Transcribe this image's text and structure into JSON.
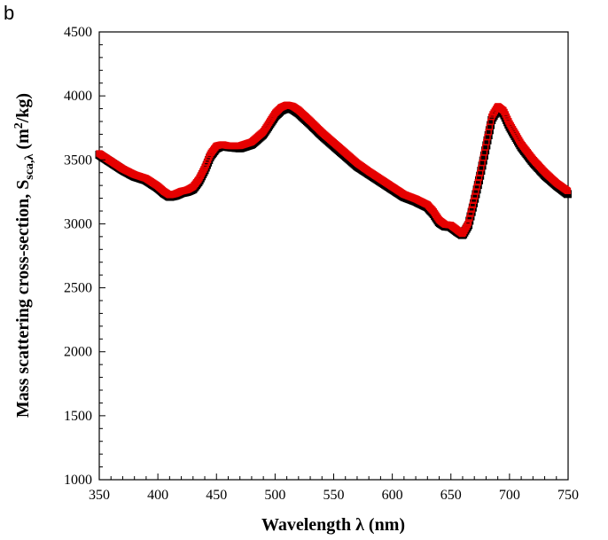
{
  "panel_label": "b",
  "colors": {
    "series_a": "#000000",
    "series_b": "#e60000",
    "axis": "#000000",
    "background": "#ffffff"
  },
  "chart_data": {
    "type": "scatter",
    "title": "",
    "xlabel": "Wavelength λ (nm)",
    "ylabel": {
      "prefix": "Mass scattering cross-section, S",
      "subscript": "sca,λ",
      "unit_open": " (m",
      "unit_sup": "2",
      "unit_close": "/kg)"
    },
    "xlim": [
      350,
      750
    ],
    "ylim": [
      1000,
      4500
    ],
    "xticks": [
      350,
      400,
      450,
      500,
      550,
      600,
      650,
      700,
      750
    ],
    "yticks": [
      1000,
      1500,
      2000,
      2500,
      3000,
      3500,
      4000,
      4500
    ],
    "grid": false,
    "legend": "none",
    "series": [
      {
        "color": "#000000",
        "marker": "filled-dense",
        "x": [
          350,
          360,
          370,
          380,
          390,
          400,
          405,
          410,
          415,
          420,
          425,
          430,
          435,
          440,
          445,
          450,
          455,
          460,
          470,
          480,
          490,
          500,
          505,
          510,
          515,
          520,
          530,
          540,
          550,
          560,
          570,
          580,
          590,
          600,
          610,
          620,
          630,
          635,
          640,
          645,
          650,
          655,
          660,
          665,
          670,
          675,
          680,
          685,
          690,
          695,
          700,
          710,
          720,
          730,
          740,
          750
        ],
        "y": [
          3540,
          3480,
          3420,
          3370,
          3340,
          3280,
          3240,
          3210,
          3220,
          3240,
          3250,
          3270,
          3330,
          3420,
          3530,
          3590,
          3610,
          3600,
          3590,
          3620,
          3700,
          3840,
          3885,
          3905,
          3895,
          3865,
          3780,
          3690,
          3610,
          3530,
          3450,
          3390,
          3330,
          3270,
          3210,
          3175,
          3130,
          3080,
          3010,
          2980,
          2975,
          2940,
          2910,
          2990,
          3180,
          3380,
          3600,
          3820,
          3900,
          3860,
          3760,
          3600,
          3480,
          3380,
          3300,
          3230
        ]
      },
      {
        "color": "#e60000",
        "marker": "square",
        "x": [
          350,
          360,
          370,
          380,
          390,
          400,
          405,
          410,
          415,
          420,
          425,
          430,
          435,
          440,
          445,
          450,
          455,
          460,
          470,
          480,
          490,
          500,
          505,
          510,
          515,
          520,
          530,
          540,
          550,
          560,
          570,
          580,
          590,
          600,
          610,
          620,
          630,
          635,
          640,
          645,
          650,
          655,
          660,
          665,
          670,
          675,
          680,
          685,
          690,
          695,
          700,
          710,
          720,
          730,
          740,
          750
        ],
        "y": [
          3550,
          3490,
          3430,
          3385,
          3355,
          3295,
          3255,
          3225,
          3235,
          3255,
          3265,
          3290,
          3350,
          3440,
          3550,
          3610,
          3620,
          3610,
          3610,
          3640,
          3720,
          3865,
          3910,
          3930,
          3920,
          3890,
          3805,
          3715,
          3635,
          3555,
          3475,
          3410,
          3350,
          3290,
          3230,
          3195,
          3150,
          3100,
          3030,
          2995,
          2990,
          2955,
          2920,
          3010,
          3200,
          3400,
          3625,
          3845,
          3920,
          3885,
          3785,
          3625,
          3505,
          3405,
          3320,
          3255
        ]
      }
    ]
  }
}
